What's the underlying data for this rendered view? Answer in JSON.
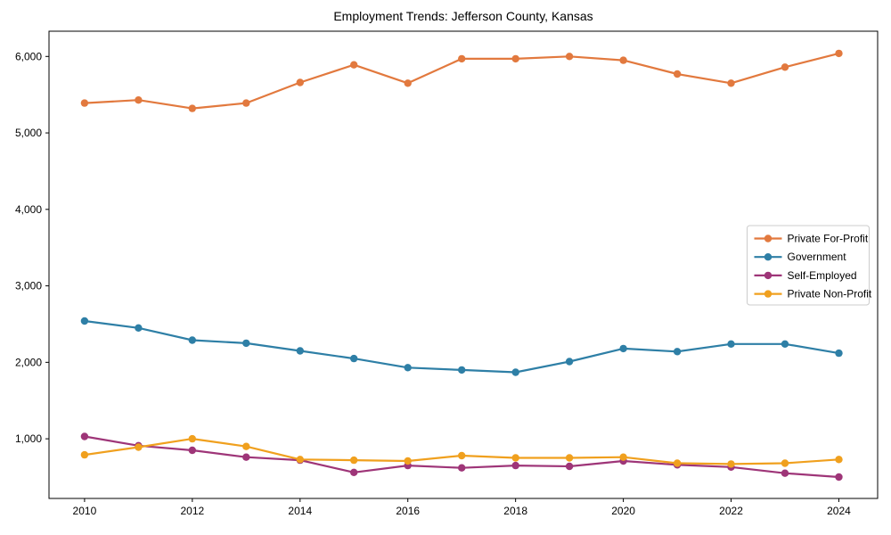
{
  "title": "Employment Trends: Jefferson County, Kansas",
  "colors": {
    "background": "#FFFFFF",
    "axis": "#000000",
    "legend_border": "#CCCCCC",
    "private_for_profit": "#E2793E",
    "government": "#2E7FA6",
    "self_employed": "#9E3578",
    "private_non_profit": "#F0A01E"
  },
  "chart_data": {
    "type": "line",
    "title": "Employment Trends: Jefferson County, Kansas",
    "xlabel": "",
    "ylabel": "",
    "x": [
      2010,
      2011,
      2012,
      2013,
      2014,
      2015,
      2016,
      2017,
      2018,
      2019,
      2020,
      2021,
      2022,
      2023,
      2024
    ],
    "xticks": [
      2010,
      2012,
      2014,
      2016,
      2018,
      2020,
      2022,
      2024
    ],
    "xtick_labels": [
      "2010",
      "2012",
      "2014",
      "2016",
      "2018",
      "2020",
      "2022",
      "2024"
    ],
    "yticks": [
      1000,
      2000,
      3000,
      4000,
      5000,
      6000
    ],
    "ytick_labels": [
      "1,000",
      "2,000",
      "3,000",
      "4,000",
      "5,000",
      "6,000"
    ],
    "xlim": [
      2009.34,
      2024.72
    ],
    "ylim": [
      220,
      6330
    ],
    "grid": false,
    "legend_position": "center right",
    "series": [
      {
        "name": "Private For-Profit",
        "color": "#E2793E",
        "values": [
          5390,
          5430,
          5320,
          5390,
          5660,
          5890,
          5650,
          5970,
          5970,
          6000,
          5950,
          5770,
          5650,
          5860,
          6040
        ]
      },
      {
        "name": "Government",
        "color": "#2E7FA6",
        "values": [
          2540,
          2450,
          2290,
          2250,
          2150,
          2050,
          1930,
          1900,
          1870,
          2010,
          2180,
          2140,
          2240,
          2240,
          2120
        ]
      },
      {
        "name": "Self-Employed",
        "color": "#9E3578",
        "values": [
          1030,
          910,
          850,
          760,
          720,
          560,
          650,
          620,
          650,
          640,
          710,
          660,
          630,
          550,
          500
        ]
      },
      {
        "name": "Private Non-Profit",
        "color": "#F0A01E",
        "values": [
          790,
          890,
          1000,
          900,
          730,
          720,
          710,
          780,
          750,
          750,
          760,
          680,
          670,
          680,
          730
        ]
      }
    ]
  }
}
